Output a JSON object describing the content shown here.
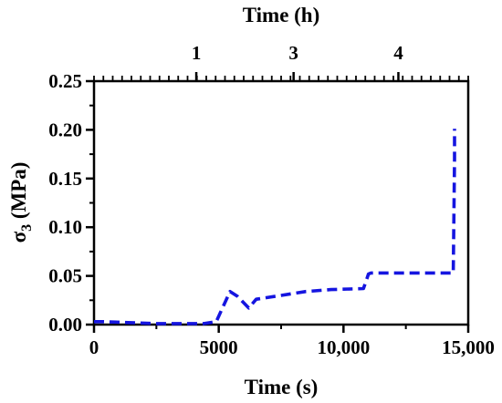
{
  "chart_data": {
    "type": "line",
    "title": "",
    "xlabel": "Time (s)",
    "ylabel_main": "σ",
    "ylabel_sub": "3",
    "ylabel_rest": " (MPa)",
    "x2label": "Time (h)",
    "xlim": [
      0,
      15000
    ],
    "ylim": [
      0,
      0.25
    ],
    "x_ticks": [
      0,
      5000,
      10000,
      15000
    ],
    "x_tick_labels": [
      "0",
      "5000",
      "10,000",
      "15,000"
    ],
    "y_ticks": [
      0,
      0.05,
      0.1,
      0.15,
      0.2,
      0.25
    ],
    "y_tick_labels": [
      "0.00",
      "0.05",
      "0.10",
      "0.15",
      "0.20",
      "0.25"
    ],
    "x2_tick_labels": [
      {
        "label": "1",
        "x": 4100
      },
      {
        "label": "3",
        "x": 8000
      },
      {
        "label": "4",
        "x": 12200
      }
    ],
    "grid": false,
    "series": [
      {
        "color": "#1515e0",
        "style": "dashed",
        "x": [
          0,
          400,
          1500,
          2500,
          3500,
          4400,
          4900,
          5450,
          5750,
          6200,
          6500,
          7500,
          8500,
          9500,
          10800,
          10950,
          11000,
          11100,
          13200,
          14400,
          14450,
          14450
        ],
        "y": [
          0.003,
          0.003,
          0.002,
          0.001,
          0.001,
          0.001,
          0.003,
          0.034,
          0.029,
          0.017,
          0.026,
          0.03,
          0.034,
          0.036,
          0.037,
          0.048,
          0.052,
          0.053,
          0.053,
          0.053,
          0.17,
          0.201
        ]
      }
    ]
  }
}
